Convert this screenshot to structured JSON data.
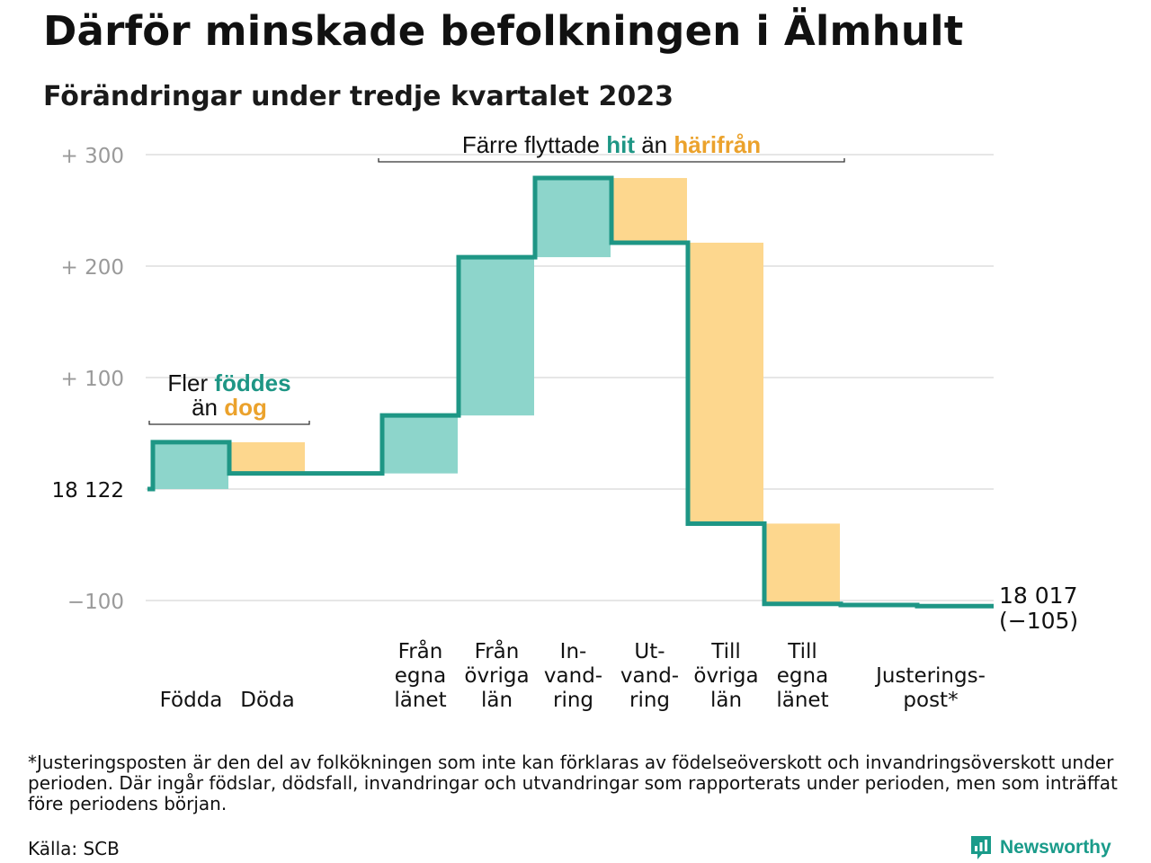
{
  "title": "Därför minskade befolkningen i Älmhult",
  "subtitle": "Förändringar under tredje kvartalet 2023",
  "footnote": "*Justeringsposten är den del av folkökningen som inte kan förklaras av födelseöverskott och invandringsöverskott under perioden. Där ingår födslar, dödsfall, invandringar och utvandringar som rapporterats under perioden, men som inträffat före periodens början.",
  "source": "Källa: SCB",
  "brand": {
    "name": "Newsworthy",
    "icon": "bar-chart-icon"
  },
  "colors": {
    "increase": "#8dd5cb",
    "decrease": "#fdd78e",
    "line": "#1e9685",
    "grid": "#e6e6e6",
    "teal_text": "#1e9685",
    "orange_text": "#eba22c",
    "tick_text": "#9a9a9a"
  },
  "chart_data": {
    "type": "waterfall",
    "start_label": "18  122",
    "start_value": 18122,
    "end_value_label": "18 017",
    "end_change_label": "(−105)",
    "y_ticks": [
      {
        "value": 300,
        "label": "+  300",
        "color": "#9a9a9a"
      },
      {
        "value": 200,
        "label": "+  200",
        "color": "#9a9a9a"
      },
      {
        "value": 100,
        "label": "+  100",
        "color": "#9a9a9a"
      },
      {
        "value": 0,
        "label": "18  122",
        "color": "#111111"
      },
      {
        "value": -100,
        "label": "−100",
        "color": "#9a9a9a"
      }
    ],
    "ylim": [
      -105,
      300
    ],
    "grid": true,
    "steps": [
      {
        "label": [
          "Födda"
        ],
        "change": 42,
        "kind": "increase"
      },
      {
        "label": [
          "Döda"
        ],
        "change": -28,
        "kind": "decrease"
      },
      {
        "label": [],
        "change": 0,
        "kind": "none"
      },
      {
        "label": [
          "Från",
          "egna",
          "länet"
        ],
        "change": 52,
        "kind": "increase"
      },
      {
        "label": [
          "Från",
          "övriga",
          "län"
        ],
        "change": 142,
        "kind": "increase"
      },
      {
        "label": [
          "In-",
          "vand-",
          "ring"
        ],
        "change": 71,
        "kind": "increase"
      },
      {
        "label": [
          "Ut-",
          "vand-",
          "ring"
        ],
        "change": -58,
        "kind": "decrease"
      },
      {
        "label": [
          "Till",
          "övriga",
          "län"
        ],
        "change": -252,
        "kind": "decrease"
      },
      {
        "label": [
          "Till",
          "egna",
          "länet"
        ],
        "change": -72,
        "kind": "decrease"
      },
      {
        "label": [],
        "change": -1,
        "kind": "decrease"
      },
      {
        "label": [
          "Justerings-",
          "post*"
        ],
        "change": -1,
        "kind": "decrease"
      }
    ],
    "annotations": [
      {
        "lines": [
          [
            {
              "text": "Fler ",
              "style": "plain"
            },
            {
              "text": "föddes",
              "style": "teal"
            }
          ],
          [
            {
              "text": "än ",
              "style": "plain"
            },
            {
              "text": "dog",
              "style": "orange"
            }
          ]
        ],
        "from_step": 0,
        "to_step": 1
      },
      {
        "lines": [
          [
            {
              "text": "Färre flyttade ",
              "style": "plain"
            },
            {
              "text": "hit",
              "style": "teal"
            },
            {
              "text": " än ",
              "style": "plain"
            },
            {
              "text": "härifrån",
              "style": "orange"
            }
          ]
        ],
        "from_step": 3,
        "to_step": 8
      }
    ]
  }
}
